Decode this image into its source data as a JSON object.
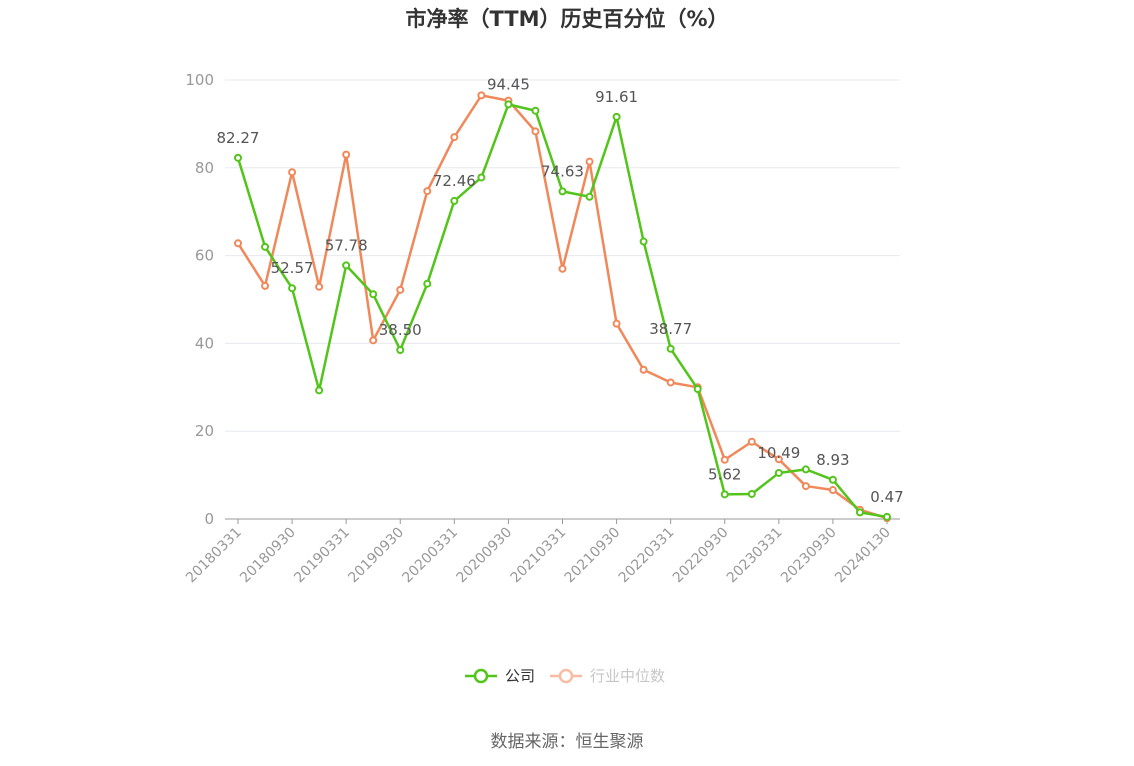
{
  "chart_data": {
    "type": "line",
    "title": "市净率（TTM）历史百分位（%）",
    "source": "数据来源：恒生聚源",
    "ylim": [
      0,
      100
    ],
    "yticks": [
      0,
      20,
      40,
      60,
      80,
      100
    ],
    "grid": true,
    "legend_position": "bottom",
    "x_tick_labels": [
      "20180331",
      "20180930",
      "20190331",
      "20190930",
      "20200331",
      "20200930",
      "20210331",
      "20210930",
      "20220331",
      "20220930",
      "20230331",
      "20230930",
      "20240130"
    ],
    "x": [
      "20180331",
      "20180630",
      "20180930",
      "20181231",
      "20190331",
      "20190630",
      "20190930",
      "20191231",
      "20200331",
      "20200630",
      "20200930",
      "20201231",
      "20210331",
      "20210630",
      "20210930",
      "20211231",
      "20220331",
      "20220630",
      "20220930",
      "20221231",
      "20230331",
      "20230630",
      "20230930",
      "20231231",
      "20240130"
    ],
    "series": [
      {
        "name": "公司",
        "color": "#52c41a",
        "values": [
          82.27,
          62.0,
          52.57,
          29.3,
          57.78,
          51.2,
          38.5,
          53.6,
          72.46,
          77.8,
          94.45,
          93.0,
          74.63,
          73.4,
          91.61,
          63.2,
          38.77,
          29.6,
          5.62,
          5.7,
          10.49,
          11.3,
          8.93,
          1.5,
          0.47
        ],
        "labeled_indices": [
          0,
          2,
          4,
          6,
          8,
          10,
          12,
          14,
          16,
          18,
          20,
          22,
          24
        ]
      },
      {
        "name": "行业中位数",
        "color": "#f0885a",
        "values": [
          62.8,
          53.1,
          79.0,
          52.9,
          83.0,
          40.7,
          52.2,
          74.7,
          87.0,
          96.5,
          95.3,
          88.3,
          57.0,
          81.4,
          44.5,
          34.0,
          31.1,
          30.0,
          13.5,
          17.6,
          13.6,
          7.5,
          6.6,
          2.1,
          0.2
        ]
      }
    ]
  }
}
